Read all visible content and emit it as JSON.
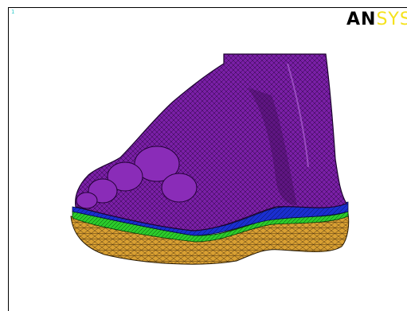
{
  "window": {
    "number": "1"
  },
  "logo": {
    "text_main": "AN",
    "text_accent": "SYS"
  },
  "colors": {
    "background": "#ffffff",
    "window_number": "#33cccc",
    "logo_main": "#000000",
    "logo_accent": "#f5e21e",
    "foot": "#7a1fa6",
    "foot_dark": "#3d0b57",
    "layer_blue": "#1a2fd0",
    "layer_green": "#2bcc2b",
    "sole": "#d9a032"
  },
  "icons": {
    "model": "foot-mesh-model"
  }
}
